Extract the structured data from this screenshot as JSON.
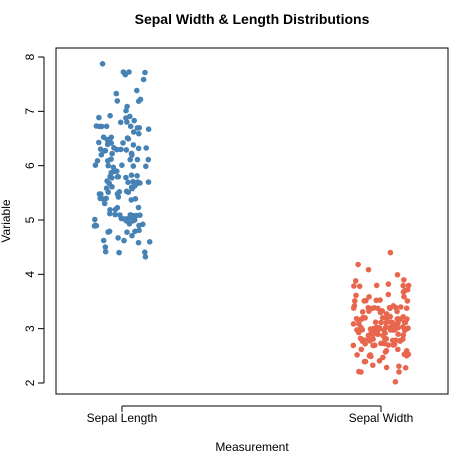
{
  "chart_data": {
    "type": "scatter",
    "title": "Sepal Width & Length Distributions",
    "xlabel": "Measurement",
    "ylabel": "Variable",
    "categories": [
      "Sepal Length",
      "Sepal Width"
    ],
    "ylim": [
      1.8,
      8.2
    ],
    "yticks": [
      "2",
      "3",
      "4",
      "5",
      "6",
      "7",
      "8"
    ],
    "grid": false,
    "legend": "none",
    "series": [
      {
        "category": "Sepal Length",
        "color": "#4682B4",
        "values": [
          5.1,
          4.9,
          4.7,
          4.6,
          5.0,
          5.4,
          4.6,
          5.0,
          4.4,
          4.9,
          5.4,
          4.8,
          4.8,
          4.3,
          5.8,
          5.7,
          5.4,
          5.1,
          5.7,
          5.1,
          5.4,
          5.1,
          4.6,
          5.1,
          4.8,
          5.0,
          5.0,
          5.2,
          5.2,
          4.7,
          4.8,
          5.4,
          5.2,
          5.5,
          4.9,
          5.0,
          5.5,
          4.9,
          4.4,
          5.1,
          5.0,
          4.5,
          4.4,
          5.0,
          5.1,
          4.8,
          5.1,
          4.6,
          5.3,
          5.0,
          7.0,
          6.4,
          6.9,
          5.5,
          6.5,
          5.7,
          6.3,
          4.9,
          6.6,
          5.2,
          5.0,
          5.9,
          6.0,
          6.1,
          5.6,
          6.7,
          5.6,
          5.8,
          6.2,
          5.6,
          5.9,
          6.1,
          6.3,
          6.1,
          6.4,
          6.6,
          6.8,
          6.7,
          6.0,
          5.7,
          5.5,
          5.5,
          5.8,
          6.0,
          5.4,
          6.0,
          6.7,
          6.3,
          5.6,
          5.5,
          5.5,
          6.1,
          5.8,
          5.0,
          5.6,
          5.7,
          5.7,
          6.2,
          5.1,
          5.7,
          6.3,
          5.8,
          7.1,
          6.3,
          6.5,
          7.6,
          4.9,
          7.3,
          6.7,
          7.2,
          6.5,
          6.4,
          6.8,
          5.7,
          5.8,
          6.4,
          6.5,
          7.7,
          7.7,
          6.0,
          6.9,
          5.6,
          7.7,
          6.3,
          6.7,
          7.2,
          6.2,
          6.1,
          6.4,
          7.2,
          7.4,
          7.9,
          6.4,
          6.3,
          6.1,
          7.7,
          6.3,
          6.4,
          6.0,
          6.9,
          6.7,
          6.9,
          5.8,
          6.8,
          6.7,
          6.7,
          6.3,
          6.5,
          6.2,
          5.9
        ]
      },
      {
        "category": "Sepal Width",
        "color": "#E8664E",
        "values": [
          3.5,
          3.0,
          3.2,
          3.1,
          3.6,
          3.9,
          3.4,
          3.4,
          2.9,
          3.1,
          3.7,
          3.4,
          3.0,
          3.0,
          4.0,
          4.4,
          3.9,
          3.5,
          3.8,
          3.8,
          3.4,
          3.7,
          3.6,
          3.3,
          3.4,
          3.0,
          3.4,
          3.5,
          3.4,
          3.2,
          3.1,
          3.4,
          4.1,
          4.2,
          3.1,
          3.2,
          3.5,
          3.6,
          3.0,
          3.4,
          3.5,
          2.3,
          3.2,
          3.5,
          3.8,
          3.0,
          3.8,
          3.2,
          3.7,
          3.3,
          3.2,
          3.2,
          3.1,
          2.3,
          2.8,
          2.8,
          3.3,
          2.4,
          2.9,
          2.7,
          2.0,
          3.0,
          2.2,
          2.9,
          2.9,
          3.1,
          3.0,
          2.7,
          2.2,
          2.5,
          3.2,
          2.8,
          2.5,
          2.8,
          2.9,
          3.0,
          2.8,
          3.0,
          2.9,
          2.6,
          2.4,
          2.4,
          2.7,
          2.7,
          3.0,
          3.4,
          3.1,
          2.3,
          3.0,
          2.5,
          2.6,
          3.0,
          2.6,
          2.3,
          2.7,
          3.0,
          2.9,
          2.9,
          2.5,
          2.8,
          3.3,
          2.7,
          3.0,
          2.9,
          3.0,
          3.0,
          2.5,
          2.9,
          2.5,
          3.6,
          3.2,
          2.7,
          3.0,
          2.5,
          2.8,
          3.2,
          3.0,
          3.8,
          2.6,
          2.2,
          3.2,
          2.8,
          2.8,
          2.7,
          3.3,
          3.2,
          2.8,
          3.0,
          2.8,
          3.0,
          2.8,
          3.8,
          2.8,
          2.8,
          2.6,
          3.0,
          3.4,
          3.1,
          3.0,
          3.1,
          3.1,
          3.1,
          2.7,
          3.2,
          3.3,
          3.0,
          2.5,
          3.0,
          3.4,
          3.0
        ]
      }
    ]
  }
}
